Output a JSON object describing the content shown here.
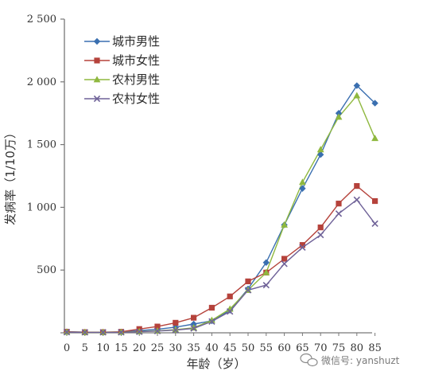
{
  "chart_data": {
    "type": "line",
    "xlabel": "年龄（岁）",
    "ylabel": "发病率（1/10万）",
    "x": [
      "0",
      "5",
      "10",
      "15",
      "20",
      "25",
      "30",
      "35",
      "40",
      "45",
      "50",
      "55",
      "60",
      "65",
      "70",
      "75",
      "80",
      "85"
    ],
    "ylim": [
      0,
      2500
    ],
    "yticks": [
      {
        "value": 0,
        "label": ""
      },
      {
        "value": 500,
        "label": "500"
      },
      {
        "value": 1000,
        "label": "1 000"
      },
      {
        "value": 1500,
        "label": "1 500"
      },
      {
        "value": 2000,
        "label": "2 000"
      },
      {
        "value": 2500,
        "label": "2 500"
      }
    ],
    "series": [
      {
        "name": "城市男性",
        "color": "#3a6fb0",
        "marker": "diamond",
        "values": [
          8,
          5,
          5,
          6,
          18,
          28,
          45,
          70,
          95,
          180,
          350,
          560,
          860,
          1150,
          1420,
          1750,
          1970,
          1830
        ]
      },
      {
        "name": "城市女性",
        "color": "#b5423b",
        "marker": "square",
        "values": [
          8,
          5,
          5,
          8,
          30,
          50,
          80,
          120,
          200,
          290,
          410,
          480,
          590,
          700,
          840,
          1030,
          1170,
          1050
        ]
      },
      {
        "name": "农村男性",
        "color": "#8fb83f",
        "marker": "triangle",
        "values": [
          6,
          4,
          4,
          5,
          10,
          15,
          25,
          40,
          100,
          190,
          340,
          480,
          860,
          1200,
          1460,
          1720,
          1890,
          1550
        ]
      },
      {
        "name": "农村女性",
        "color": "#6f6298",
        "marker": "x",
        "values": [
          5,
          4,
          4,
          4,
          8,
          14,
          22,
          35,
          90,
          170,
          340,
          380,
          550,
          680,
          780,
          950,
          1060,
          870
        ]
      }
    ],
    "legend_position": "top-left",
    "grid": false
  },
  "watermark": {
    "text": "微信号: yanshuzt",
    "icon": "wechat-icon"
  }
}
